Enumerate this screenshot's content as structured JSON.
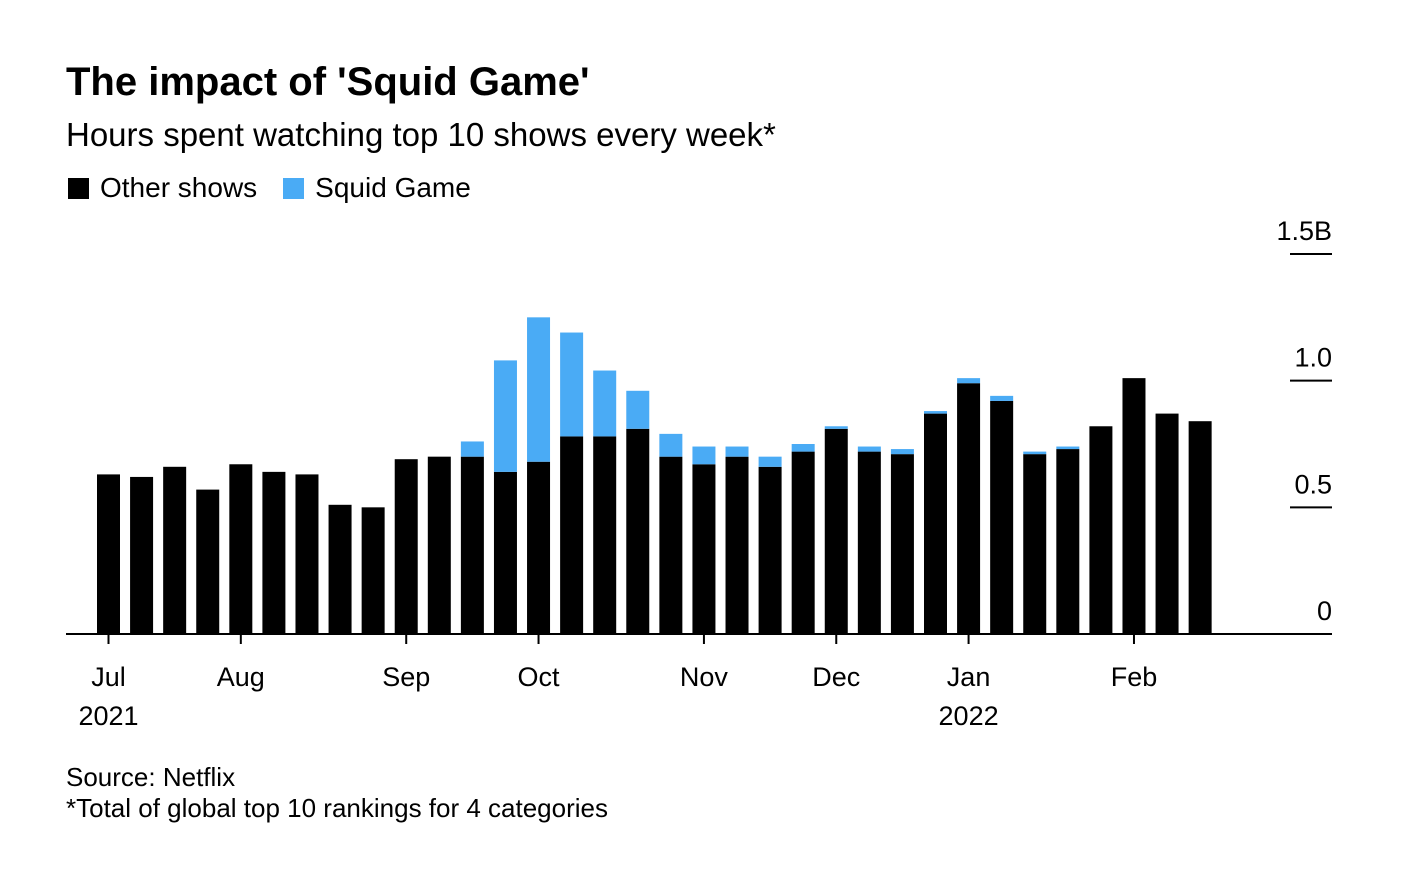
{
  "title": "The impact of 'Squid Game'",
  "subtitle": "Hours spent watching top 10 shows every week*",
  "legend": [
    {
      "label": "Other shows",
      "color": "#000000"
    },
    {
      "label": "Squid Game",
      "color": "#4aabf5"
    }
  ],
  "footer": {
    "source": "Source: Netflix",
    "note": "*Total of global top 10 rankings for 4 categories"
  },
  "chart_data": {
    "type": "bar",
    "stacked": true,
    "x": [
      "2021-06-28",
      "2021-07-05",
      "2021-07-12",
      "2021-07-19",
      "2021-07-26",
      "2021-08-02",
      "2021-08-09",
      "2021-08-16",
      "2021-08-23",
      "2021-08-30",
      "2021-09-06",
      "2021-09-13",
      "2021-09-20",
      "2021-09-27",
      "2021-10-04",
      "2021-10-11",
      "2021-10-18",
      "2021-10-25",
      "2021-11-01",
      "2021-11-08",
      "2021-11-15",
      "2021-11-22",
      "2021-11-29",
      "2021-12-06",
      "2021-12-13",
      "2021-12-20",
      "2021-12-27",
      "2022-01-03",
      "2022-01-10",
      "2022-01-17",
      "2022-01-24",
      "2022-01-31",
      "2022-02-07",
      "2022-02-14"
    ],
    "series": [
      {
        "name": "Other shows",
        "color": "#000000",
        "values": [
          0.63,
          0.62,
          0.66,
          0.57,
          0.67,
          0.64,
          0.63,
          0.51,
          0.5,
          0.69,
          0.7,
          0.7,
          0.64,
          0.68,
          0.78,
          0.78,
          0.81,
          0.7,
          0.67,
          0.7,
          0.66,
          0.72,
          0.81,
          0.72,
          0.71,
          0.87,
          0.99,
          0.92,
          0.71,
          0.73,
          0.82,
          1.01,
          0.87,
          0.84
        ]
      },
      {
        "name": "Squid Game",
        "color": "#4aabf5",
        "values": [
          0,
          0,
          0,
          0,
          0,
          0,
          0,
          0,
          0,
          0,
          0,
          0.06,
          0.44,
          0.57,
          0.41,
          0.26,
          0.15,
          0.09,
          0.07,
          0.04,
          0.04,
          0.03,
          0.01,
          0.02,
          0.02,
          0.01,
          0.02,
          0.02,
          0.01,
          0.01,
          0,
          0,
          0,
          0
        ]
      }
    ],
    "x_ticks": [
      {
        "date": "2021-06-28",
        "label": "Jul",
        "sublabel": "2021"
      },
      {
        "date": "2021-07-26",
        "label": "Aug",
        "sublabel": ""
      },
      {
        "date": "2021-08-30",
        "label": "Sep",
        "sublabel": ""
      },
      {
        "date": "2021-09-27",
        "label": "Oct",
        "sublabel": ""
      },
      {
        "date": "2021-11-01",
        "label": "Nov",
        "sublabel": ""
      },
      {
        "date": "2021-11-29",
        "label": "Dec",
        "sublabel": ""
      },
      {
        "date": "2021-12-27",
        "label": "Jan",
        "sublabel": "2022"
      },
      {
        "date": "2022-01-31",
        "label": "Feb",
        "sublabel": ""
      }
    ],
    "y_ticks": [
      {
        "value": 0,
        "label": "0"
      },
      {
        "value": 0.5,
        "label": "0.5"
      },
      {
        "value": 1.0,
        "label": "1.0"
      },
      {
        "value": 1.5,
        "label": "1.5B"
      }
    ],
    "ylim": [
      0,
      1.5
    ],
    "y_axis_position": "right",
    "grid": false,
    "legend_position": "top-left"
  }
}
